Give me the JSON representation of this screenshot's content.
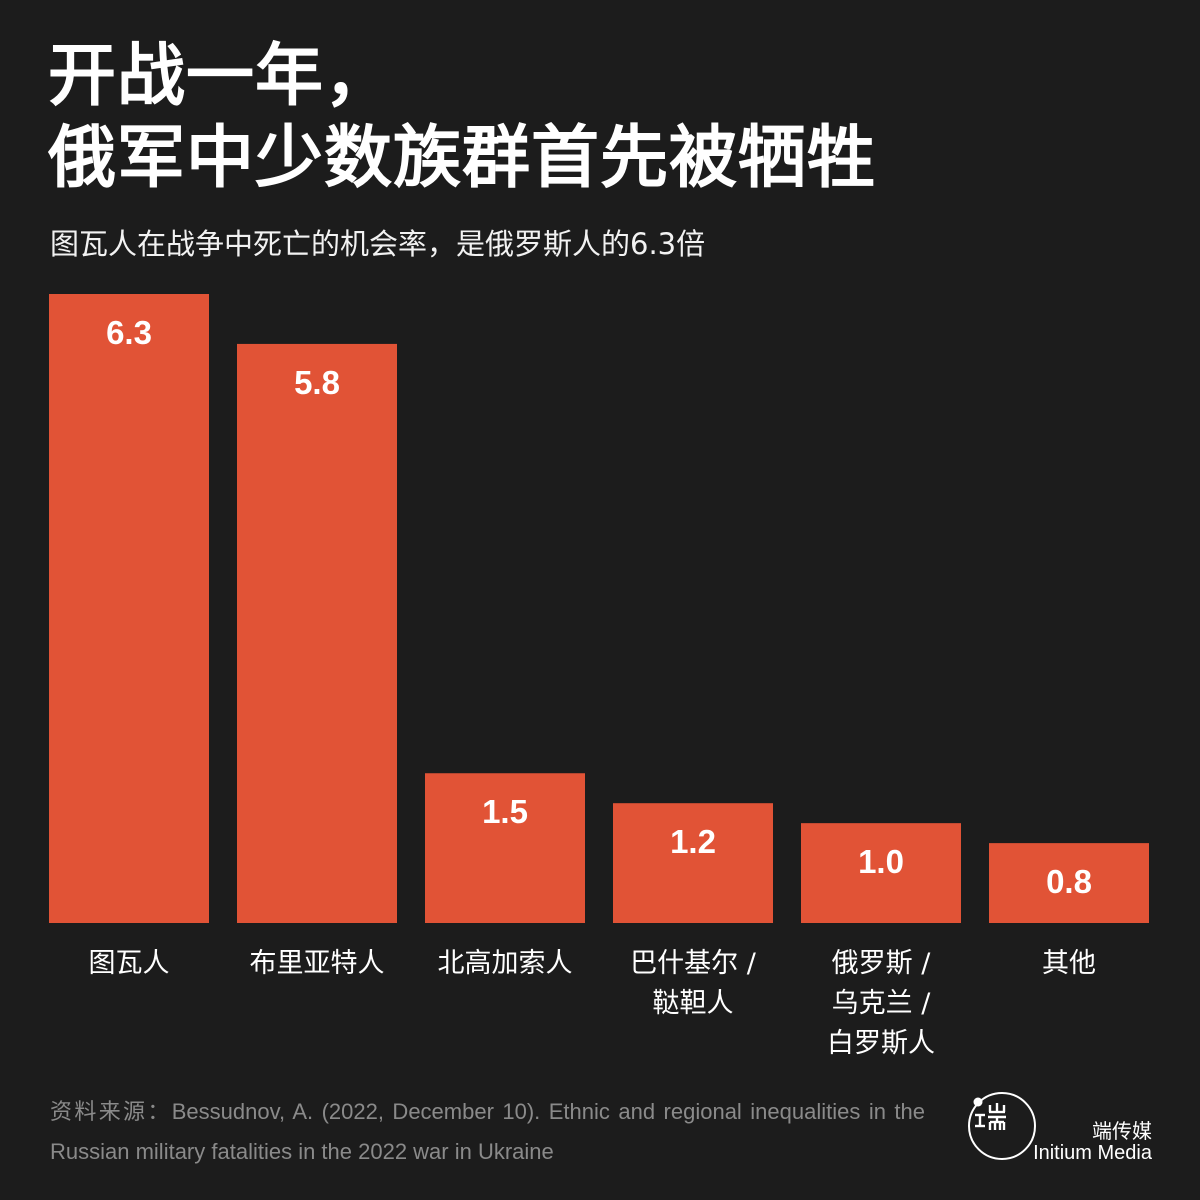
{
  "header": {
    "title_line1": "开战一年，",
    "title_line2": "俄军中少数族群首先被牺牲",
    "subtitle": "图瓦人在战争中死亡的机会率，是俄罗斯人的6.3倍"
  },
  "chart_data": {
    "type": "bar",
    "title": "开战一年，俄军中少数族群首先被牺牲",
    "subtitle": "图瓦人在战争中死亡的机会率，是俄罗斯人的6.3倍",
    "categories": [
      [
        "图瓦人"
      ],
      [
        "布里亚特人"
      ],
      [
        "北高加索人"
      ],
      [
        "巴什基尔 /",
        "鞑靼人"
      ],
      [
        "俄罗斯 /",
        "乌克兰 /",
        "白罗斯人"
      ],
      [
        "其他"
      ]
    ],
    "values": [
      6.3,
      5.8,
      1.5,
      1.2,
      1.0,
      0.8
    ],
    "value_labels": [
      "6.3",
      "5.8",
      "1.5",
      "1.2",
      "1.0",
      "0.8"
    ],
    "ylim": [
      0,
      6.3
    ],
    "grid": false,
    "bar_color": "#e15336"
  },
  "footer": {
    "source": "资料来源：Bessudnov, A. (2022, December 10). Ethnic and regional inequalities in the Russian military fatalities in the 2022 war in Ukraine",
    "brand_cn": "端传媒",
    "brand_en": "Initium Media",
    "logo_icon": "initium-logo-icon"
  }
}
